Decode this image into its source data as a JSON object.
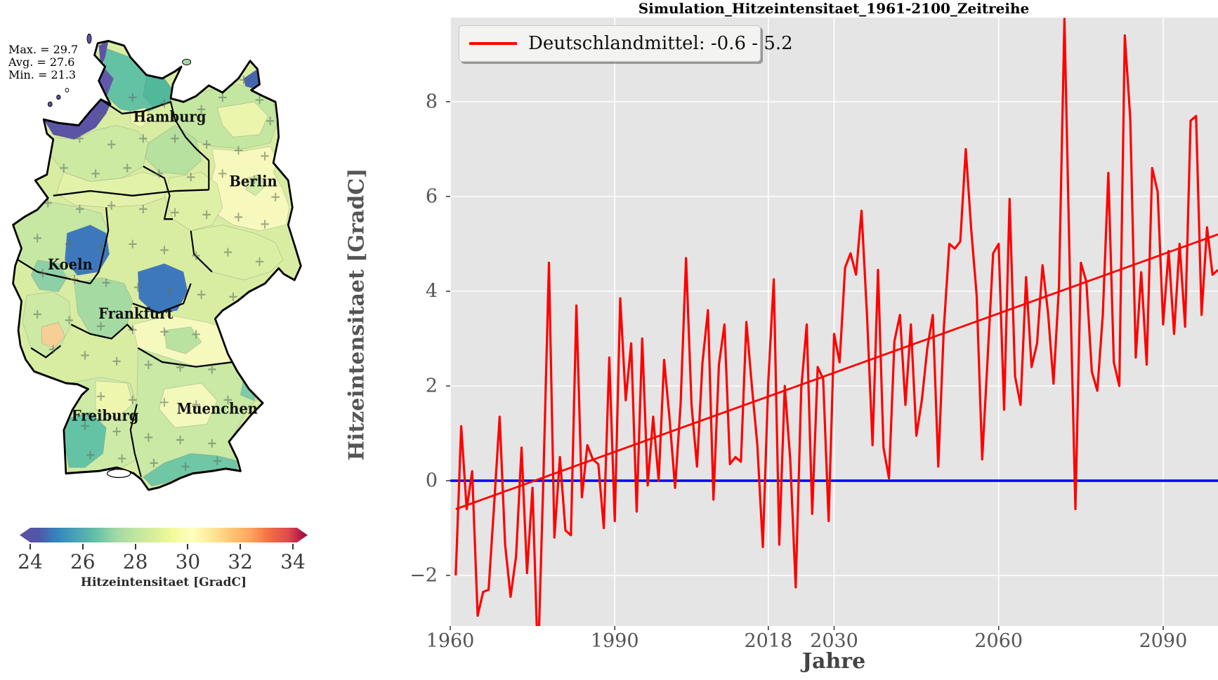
{
  "map_panel": {
    "stats": {
      "max_label": "Max. = 29.7",
      "avg_label": "Avg. = 27.6",
      "min_label": "Min. = 21.3",
      "max": 29.7,
      "avg": 27.6,
      "min": 21.3
    },
    "cities": [
      {
        "name": "Hamburg"
      },
      {
        "name": "Berlin"
      },
      {
        "name": "Koeln"
      },
      {
        "name": "Frankfurt"
      },
      {
        "name": "Freiburg"
      },
      {
        "name": "Muenchen"
      }
    ],
    "colorbar": {
      "label": "Hitzeintensitaet [GradC]",
      "ticks": [
        "24",
        "26",
        "28",
        "30",
        "32",
        "34"
      ],
      "tick_values": [
        24,
        26,
        28,
        30,
        32,
        34
      ],
      "min": 24,
      "max": 34,
      "colors": [
        "#5e4fa2",
        "#4f58a8",
        "#3288bd",
        "#4da4b5",
        "#66c2a5",
        "#a0d8a4",
        "#bfe5a0",
        "#d7ef9b",
        "#f2fa9c",
        "#ffffbf",
        "#fee799",
        "#fdc675",
        "#fda55f",
        "#f46d43",
        "#dd4a4c",
        "#9e0142"
      ]
    }
  },
  "chart": {
    "title": "Simulation_Hitzeintensitaet_1961-2100_Zeitreihe",
    "xlabel": "Jahre",
    "ylabel": "Hitzeintensitaet [GradC]",
    "legend": {
      "label": "Deutschlandmittel: -0.6 - 5.2",
      "line_color": "#ff0000"
    }
  },
  "chart_data": {
    "type": "line",
    "title": "Simulation_Hitzeintensitaet_1961-2100_Zeitreihe",
    "xlabel": "Jahre",
    "ylabel": "Hitzeintensitaet [GradC]",
    "xlim": [
      1960,
      2100
    ],
    "ylim": [
      -3.07,
      9.78
    ],
    "grid": true,
    "legend_position": "upper left",
    "x_tick_values": [
      1960,
      1990,
      2018,
      2030,
      2060,
      2090
    ],
    "y_tick_values": [
      8,
      6,
      4,
      2,
      0,
      -2
    ],
    "series": [
      {
        "name": "Deutschlandmittel",
        "color": "#ff0000",
        "start_year": 1961,
        "values": [
          -2.0,
          1.15,
          -0.6,
          0.2,
          -2.85,
          -2.35,
          -2.3,
          -0.5,
          1.35,
          -1.35,
          -2.45,
          -1.6,
          0.7,
          -1.95,
          -0.15,
          -3.9,
          0.1,
          4.6,
          -1.2,
          0.5,
          -1.05,
          -1.15,
          3.7,
          -0.35,
          0.75,
          0.45,
          0.35,
          -1.0,
          2.6,
          -0.85,
          3.85,
          1.7,
          2.9,
          -0.65,
          3.0,
          -0.1,
          1.35,
          0.0,
          2.55,
          1.3,
          -0.15,
          1.6,
          4.7,
          1.6,
          0.3,
          2.5,
          3.6,
          -0.4,
          2.45,
          3.3,
          0.35,
          0.5,
          0.4,
          3.35,
          2.0,
          0.75,
          -1.4,
          2.1,
          4.25,
          -1.35,
          2.0,
          0.45,
          -2.25,
          1.95,
          3.3,
          -0.7,
          2.4,
          2.15,
          -0.85,
          3.1,
          2.5,
          4.5,
          4.8,
          4.35,
          5.7,
          3.5,
          0.75,
          4.45,
          0.7,
          0.05,
          2.95,
          3.5,
          1.6,
          3.3,
          0.95,
          1.7,
          2.8,
          3.5,
          0.3,
          3.2,
          5.0,
          4.9,
          5.05,
          7.0,
          5.3,
          3.9,
          0.45,
          2.6,
          4.8,
          5.0,
          1.5,
          5.95,
          2.2,
          1.6,
          4.3,
          2.4,
          2.9,
          4.55,
          3.55,
          2.05,
          4.1,
          9.75,
          4.3,
          -0.6,
          4.6,
          4.2,
          2.3,
          1.9,
          3.5,
          6.5,
          2.5,
          2.0,
          9.4,
          7.65,
          2.6,
          4.4,
          2.45,
          6.6,
          6.1,
          3.3,
          4.85,
          3.1,
          5.0,
          3.25,
          7.6,
          7.7,
          3.5,
          5.35,
          4.35,
          4.45
        ]
      }
    ],
    "trend_line": {
      "x": [
        1961,
        2100
      ],
      "y": [
        -0.6,
        5.2
      ],
      "color": "#ff0000"
    },
    "zero_line": {
      "y": 0,
      "color": "#0000ff"
    },
    "plot_background": "#e5e5e5",
    "grid_color": "#ffffff"
  }
}
